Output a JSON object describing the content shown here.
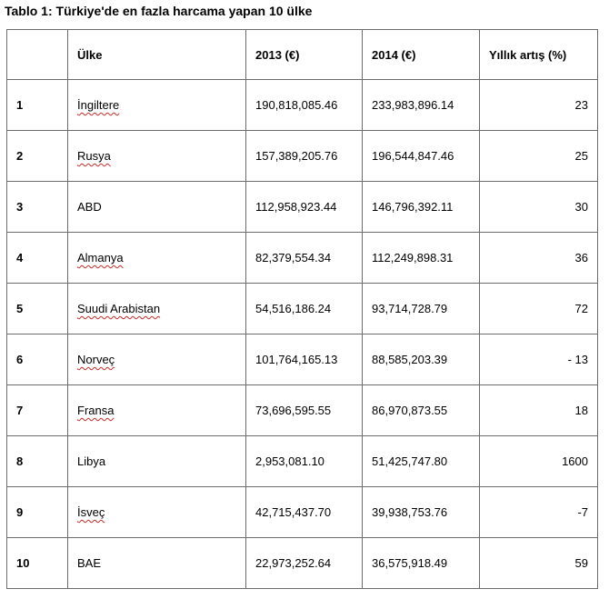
{
  "title": "Tablo 1: Türkiye'de en fazla harcama yapan 10 ülke",
  "columns": [
    "",
    "Ülke",
    "2013 (€)",
    "2014 (€)",
    "Yıllık artış (%)"
  ],
  "rows": [
    {
      "rank": "1",
      "country": "İngiltere",
      "y2013": "190,818,085.46",
      "y2014": "233,983,896.14",
      "growth": "23",
      "spell": true
    },
    {
      "rank": "2",
      "country": "Rusya",
      "y2013": "157,389,205.76",
      "y2014": "196,544,847.46",
      "growth": "25",
      "spell": true
    },
    {
      "rank": "3",
      "country": "ABD",
      "y2013": "112,958,923.44",
      "y2014": "146,796,392.11",
      "growth": "30",
      "spell": false
    },
    {
      "rank": "4",
      "country": "Almanya",
      "y2013": "82,379,554.34",
      "y2014": "112,249,898.31",
      "growth": "36",
      "spell": true
    },
    {
      "rank": "5",
      "country": "Suudi Arabistan",
      "y2013": "54,516,186.24",
      "y2014": "93,714,728.79",
      "growth": "72",
      "spell": true
    },
    {
      "rank": "6",
      "country": "Norveç",
      "y2013": "101,764,165.13",
      "y2014": "88,585,203.39",
      "growth": "- 13",
      "spell": true
    },
    {
      "rank": "7",
      "country": "Fransa",
      "y2013": "73,696,595.55",
      "y2014": "86,970,873.55",
      "growth": "18",
      "spell": true
    },
    {
      "rank": "8",
      "country": "Libya",
      "y2013": "2,953,081.10",
      "y2014": "51,425,747.80",
      "growth": "1600",
      "spell": false
    },
    {
      "rank": "9",
      "country": "İsveç",
      "y2013": "42,715,437.70",
      "y2014": "39,938,753.76",
      "growth": "-7",
      "spell": true
    },
    {
      "rank": "10",
      "country": "BAE",
      "y2013": "22,973,252.64",
      "y2014": "36,575,918.49",
      "growth": "59",
      "spell": false
    }
  ]
}
